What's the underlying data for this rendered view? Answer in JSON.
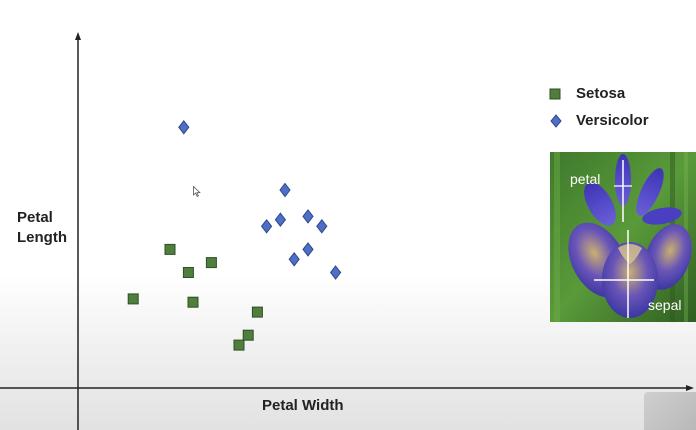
{
  "chart_data": {
    "type": "scatter",
    "xlabel": "Petal Width",
    "ylabel": "Petal Length",
    "xlim": [
      0,
      10
    ],
    "ylim": [
      0,
      10
    ],
    "grid": false,
    "legend_placement": "top-right",
    "series": [
      {
        "name": "Setosa",
        "marker": "square",
        "color": "#4f7e3d",
        "points": [
          {
            "x": 1.2,
            "y": 2.7
          },
          {
            "x": 2.0,
            "y": 4.2
          },
          {
            "x": 2.4,
            "y": 3.5
          },
          {
            "x": 2.5,
            "y": 2.6
          },
          {
            "x": 2.9,
            "y": 3.8
          },
          {
            "x": 3.5,
            "y": 1.3
          },
          {
            "x": 3.7,
            "y": 1.6
          },
          {
            "x": 3.9,
            "y": 2.3
          }
        ]
      },
      {
        "name": "Versicolor",
        "marker": "diamond",
        "color": "#4f6fc5",
        "points": [
          {
            "x": 2.3,
            "y": 7.9
          },
          {
            "x": 4.1,
            "y": 4.9
          },
          {
            "x": 4.4,
            "y": 5.1
          },
          {
            "x": 4.5,
            "y": 6.0
          },
          {
            "x": 4.7,
            "y": 3.9
          },
          {
            "x": 5.0,
            "y": 5.2
          },
          {
            "x": 5.0,
            "y": 4.2
          },
          {
            "x": 5.3,
            "y": 4.9
          },
          {
            "x": 5.6,
            "y": 3.5
          }
        ]
      }
    ]
  },
  "legend": {
    "items": [
      {
        "label": "Setosa",
        "marker": "square",
        "color": "#4f7e3d"
      },
      {
        "label": "Versicolor",
        "marker": "diamond",
        "color": "#4f6fc5"
      }
    ]
  },
  "photo": {
    "petal_label": "petal",
    "sepal_label": "sepal"
  },
  "icons": {
    "cursor": "pointer-cursor-icon"
  }
}
